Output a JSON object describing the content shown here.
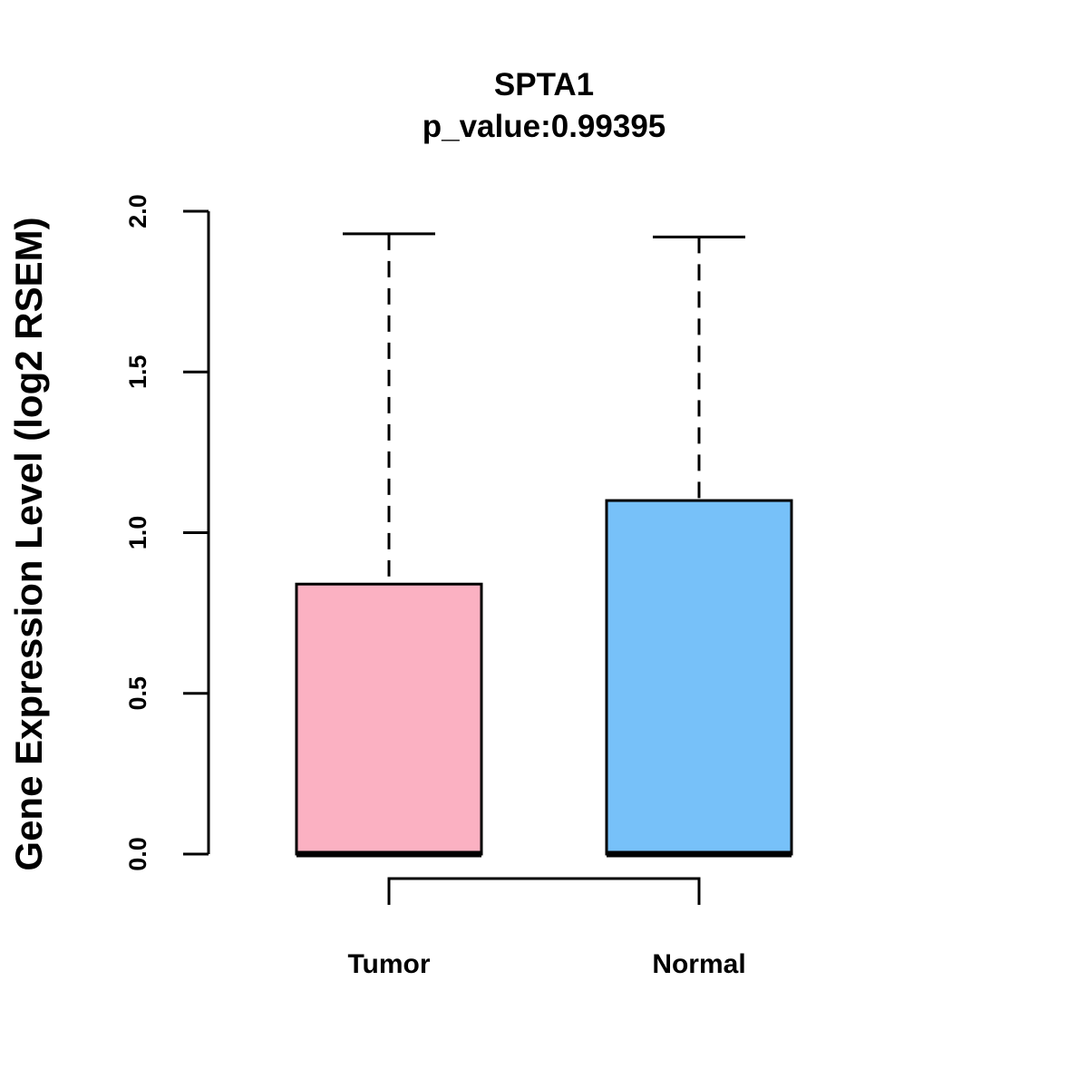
{
  "chart_data": {
    "type": "boxplot",
    "title": "SPTA1",
    "subtitle": "p_value:0.99395",
    "xlabel": "",
    "ylabel": "Gene Expression Level (log2 RSEM)",
    "ylim": [
      0,
      2
    ],
    "yticks": [
      "0.0",
      "0.5",
      "1.0",
      "1.5",
      "2.0"
    ],
    "categories": [
      "Tumor",
      "Normal"
    ],
    "boxes": [
      {
        "name": "Tumor",
        "min": 0,
        "q1": 0,
        "median": 0,
        "q3": 0.84,
        "max": 1.93,
        "color": "#FBB1C2"
      },
      {
        "name": "Normal",
        "min": 0,
        "q1": 0,
        "median": 0,
        "q3": 1.1,
        "max": 1.92,
        "color": "#77C1F9"
      }
    ],
    "comparison_bracket": [
      "Tumor",
      "Normal"
    ],
    "grid": false
  }
}
